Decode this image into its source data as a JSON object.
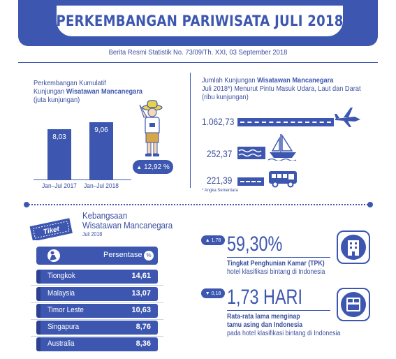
{
  "header": {
    "title": "PERKEMBANGAN PARIWISATA JULI 2018",
    "subtitle": "Berita Resmi Statistik No. 73/09/Th. XXI, 03 September 2018"
  },
  "cumulative": {
    "label_line1": "Perkembangan Kumulatif",
    "label_line2_a": "Kunjungan ",
    "label_line2_b": "Wisatawan Mancanegara",
    "label_line3": "(juta kunjungan)",
    "growth": "12,92 %",
    "chart_data": {
      "type": "bar",
      "categories": [
        "Jan–Jul 2017",
        "Jan–Jul 2018"
      ],
      "values": [
        8.03,
        9.06
      ],
      "value_labels": [
        "8,03",
        "9,06"
      ],
      "ylim": [
        0,
        10
      ]
    }
  },
  "arrivals": {
    "label_line1_a": "Jumlah Kunjungan ",
    "label_line1_b": "Wisatawan Mancanegara",
    "label_line2": "Juli 2018*) Menurut Pintu Masuk Udara, Laut dan Darat",
    "label_line3": "(ribu kunjungan)",
    "air": "1.062,73",
    "sea": "252,37",
    "land": "221,39",
    "note": "* Angka Sementara"
  },
  "nationality": {
    "title_line1": "Kebangsaan",
    "title_line2": "Wisatawan Mancanegara",
    "title_line3": "Juli 2018",
    "ticket": "Tiket",
    "column": "Persentase",
    "badge": "%",
    "rows": [
      {
        "country": "Tiongkok",
        "value": "14,61"
      },
      {
        "country": "Malaysia",
        "value": "13,07"
      },
      {
        "country": "Timor Leste",
        "value": "10,63"
      },
      {
        "country": "Singapura",
        "value": "8,76"
      },
      {
        "country": "Australia",
        "value": "8,36"
      }
    ]
  },
  "tpk": {
    "delta": "1,78",
    "value": "59,30%",
    "desc_line1": "Tingkat Penghunian Kamar (TPK)",
    "desc_line2": "hotel klasifikasi bintang di Indonesia"
  },
  "stay": {
    "delta": "0,18",
    "value": "1,73 HARI",
    "desc_line1": "Rata-rata lama menginap",
    "desc_line2": "tamu asing dan Indonesia",
    "desc_line3": "pada hotel klasifikasi bintang di Indonesia"
  },
  "colors": {
    "primary": "#3d57b0",
    "dark": "#2c418f",
    "text": "#3a4f9e"
  }
}
